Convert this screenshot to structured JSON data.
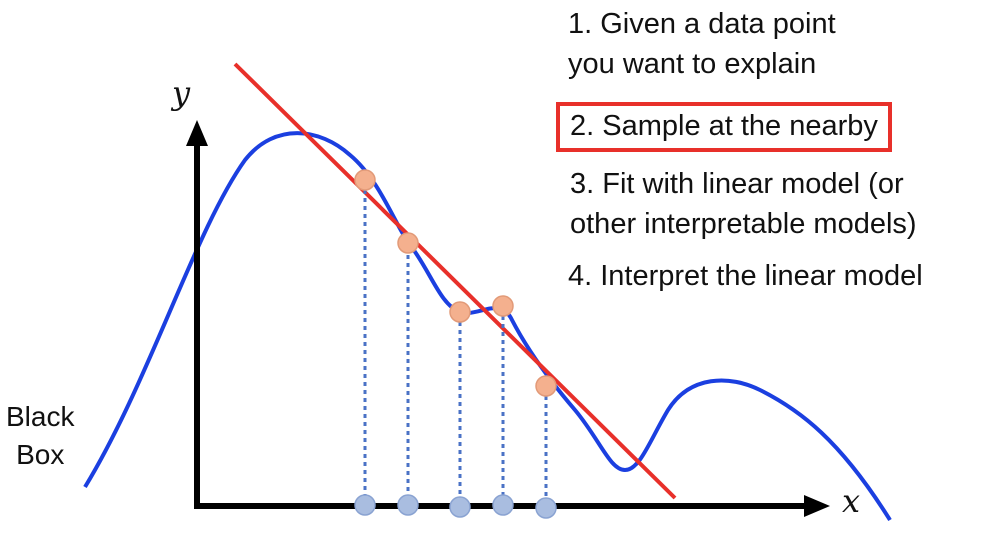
{
  "steps": [
    {
      "line1": "1. Given a data point",
      "line2": "you want to explain"
    },
    {
      "line1": "2. Sample at the nearby",
      "highlight_color": "#e8302a"
    },
    {
      "line1": "3. Fit with linear model (or",
      "line2": "other interpretable models)"
    },
    {
      "line1": "4. Interpret the linear model"
    }
  ],
  "black_box_label": {
    "line1": "Black",
    "line2": "Box"
  },
  "axes": {
    "x_label": "x",
    "y_label": "y"
  },
  "colors": {
    "curve": "#1b3fe0",
    "fit_line": "#e8302a",
    "sample_point": "#f4b08e",
    "projected_point": "#a9bde0",
    "projection_line": "#4a72c6",
    "axis": "#000000"
  },
  "icons": {
    "x_arrow": "arrow-right-icon",
    "y_arrow": "arrow-up-icon"
  }
}
